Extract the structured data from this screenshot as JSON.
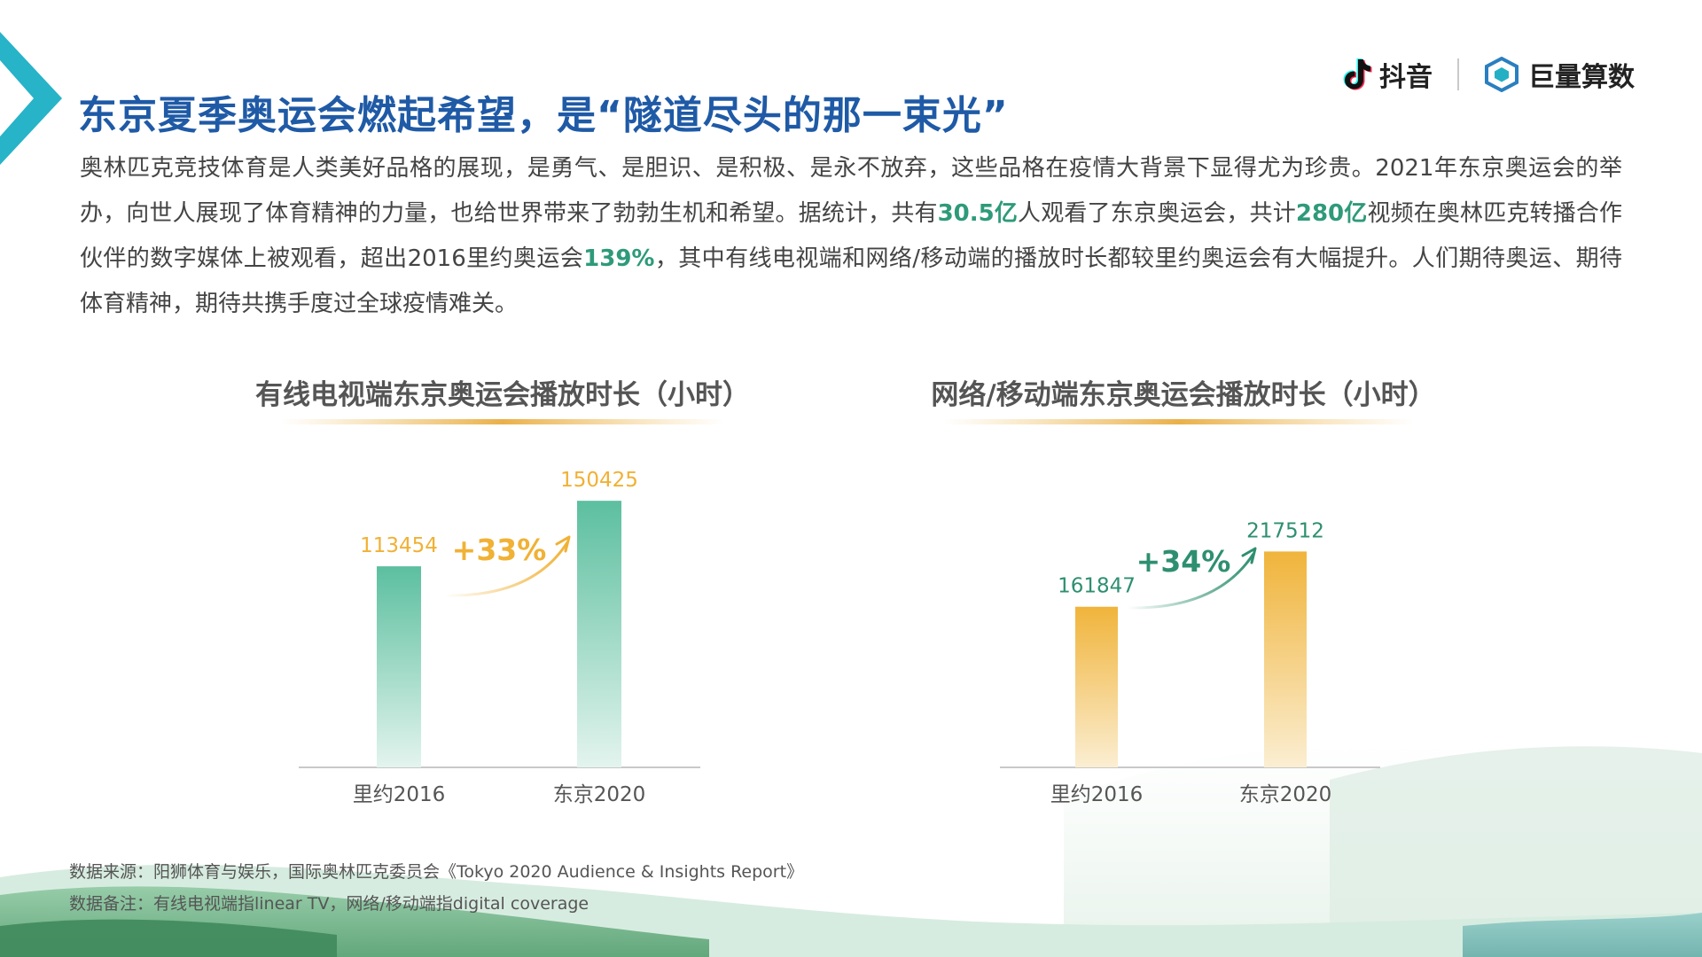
{
  "title": "东京夏季奥运会燃起希望，是“隧道尽头的那一束光”",
  "logos": {
    "douyin": "抖音",
    "juliang": "巨量算数"
  },
  "intro": {
    "p1": "奥林匹克竞技体育是人类美好品格的展现，是勇气、是胆识、是积极、是永不放弃，这些品格在疫情大背景下显得尤为珍贵。2021年东京奥运会的举办，向世人展现了体育精神的力量，也给世界带来了勃勃生机和希望。据统计，共有",
    "h1": "30.5亿",
    "p2": "人观看了东京奥运会，共计",
    "h2": "280亿",
    "p3": "视频在奥林匹克转播合作伙伴的数字媒体上被观看，超出2016里约奥运会",
    "h3": "139%",
    "p4": "，其中有线电视端和网络/移动端的播放时长都较里约奥运会有大幅提升。人们期待奥运、期待体育精神，期待共携手度过全球疫情难关。"
  },
  "chart_data": [
    {
      "type": "bar",
      "title": "有线电视端东京奥运会播放时长（小时）",
      "categories": [
        "里约2016",
        "东京2020"
      ],
      "values": [
        113454,
        150425
      ],
      "growth_label": "+33%",
      "colors": {
        "bar_top": "#5cbf9f",
        "bar_bottom": "#e3f4ee",
        "value_label": "#f0b135",
        "growth_label": "#f0b135"
      }
    },
    {
      "type": "bar",
      "title": "网络/移动端东京奥运会播放时长（小时）",
      "categories": [
        "里约2016",
        "东京2020"
      ],
      "values": [
        161847,
        217512
      ],
      "growth_label": "+34%",
      "colors": {
        "bar_top": "#f0b43b",
        "bar_bottom": "#fbeed2",
        "value_label": "#2e8f70",
        "growth_label": "#2e8f70"
      }
    }
  ],
  "footnotes": {
    "source": "数据来源：阳狮体育与娱乐，国际奥林匹克委员会《Tokyo 2020 Audience & Insights Report》",
    "note": "数据备注：有线电视端指linear TV，网络/移动端指digital coverage"
  },
  "colors": {
    "title": "#1f5aa6",
    "highlight": "#2e9a7a",
    "accent_cyan": "#27b3c8"
  }
}
